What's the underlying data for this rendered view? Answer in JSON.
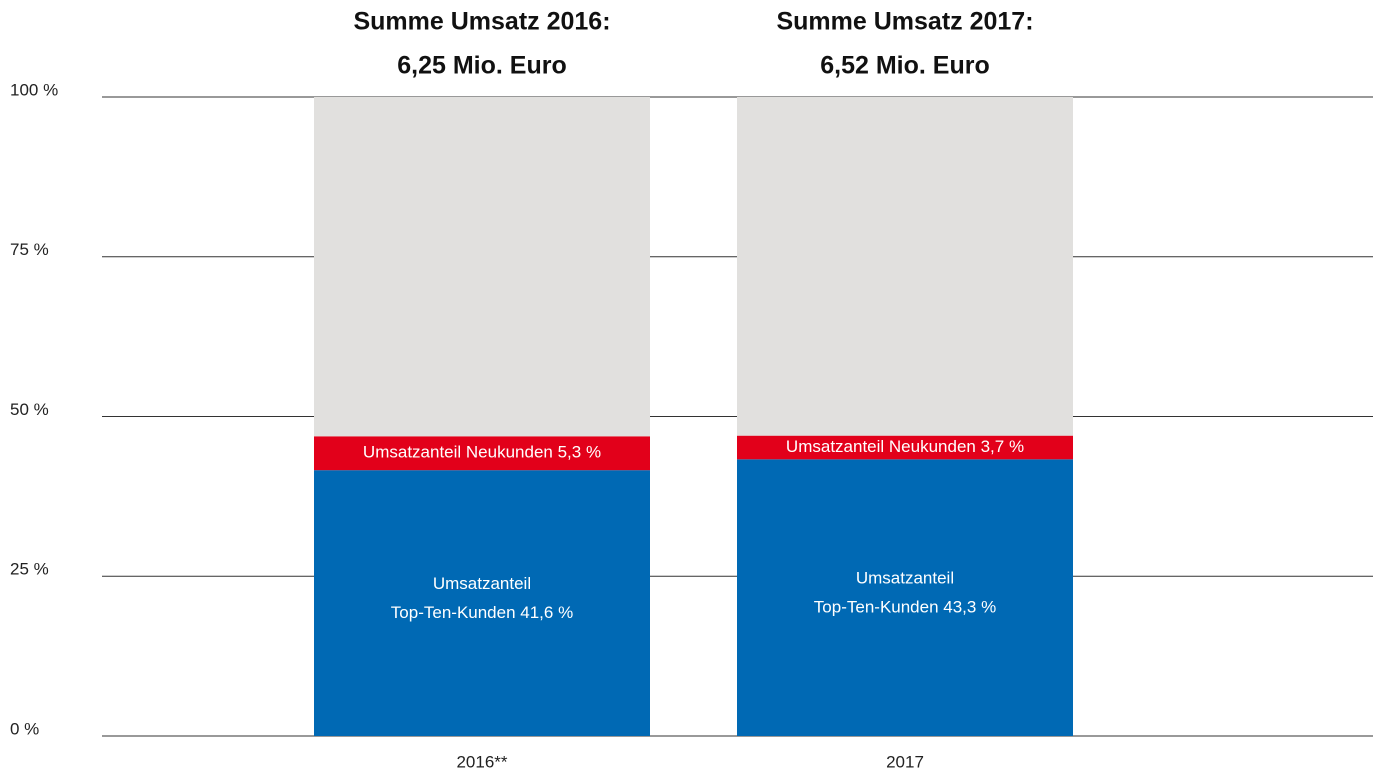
{
  "chart_data": {
    "type": "stacked_bar",
    "categories": [
      "2016**",
      "2017"
    ],
    "column_titles": [
      [
        "Summe Umsatz 2016:",
        "6,25 Mio. Euro"
      ],
      [
        "Summe Umsatz 2017:",
        "6,52 Mio. Euro"
      ]
    ],
    "series": [
      {
        "color": "#0069b4",
        "values": [
          41.6,
          43.3
        ],
        "value_labels": [
          [
            "Umsatzanteil",
            "Top-Ten-Kunden 41,6 %"
          ],
          [
            "Umsatzanteil",
            "Top-Ten-Kunden 43,3 %"
          ]
        ]
      },
      {
        "color": "#e2001a",
        "values": [
          5.3,
          3.7
        ],
        "value_labels": [
          [
            "Umsatzanteil Neukunden 5,3 %"
          ],
          [
            "Umsatzanteil Neukunden 3,7 %"
          ]
        ]
      },
      {
        "color": "#e1e0de",
        "values": [
          53.1,
          53.0
        ]
      }
    ],
    "ylim": [
      0,
      100
    ],
    "yticks": [
      {
        "value": 0,
        "label": "0 %"
      },
      {
        "value": 25,
        "label": "25 %"
      },
      {
        "value": 50,
        "label": "50 %"
      },
      {
        "value": 75,
        "label": "75 %"
      },
      {
        "value": 100,
        "label": "100 %"
      }
    ],
    "grid": true
  }
}
